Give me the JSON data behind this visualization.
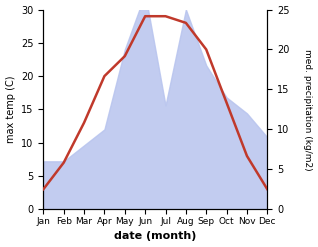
{
  "months": [
    "Jan",
    "Feb",
    "Mar",
    "Apr",
    "May",
    "Jun",
    "Jul",
    "Aug",
    "Sep",
    "Oct",
    "Nov",
    "Dec"
  ],
  "temperature": [
    3,
    7,
    13,
    20,
    23,
    29,
    29,
    28,
    24,
    16,
    8,
    3
  ],
  "precipitation": [
    6,
    6,
    8,
    10,
    20,
    27,
    13,
    25,
    18,
    14,
    12,
    9
  ],
  "temp_color": "#c0392b",
  "precip_color": "#b8c4ee",
  "ylabel_left": "max temp (C)",
  "ylabel_right": "med. precipitation (kg/m2)",
  "xlabel": "date (month)",
  "ylim_left": [
    0,
    30
  ],
  "ylim_right": [
    0,
    25
  ],
  "temp_linewidth": 1.8,
  "background_color": "#ffffff"
}
